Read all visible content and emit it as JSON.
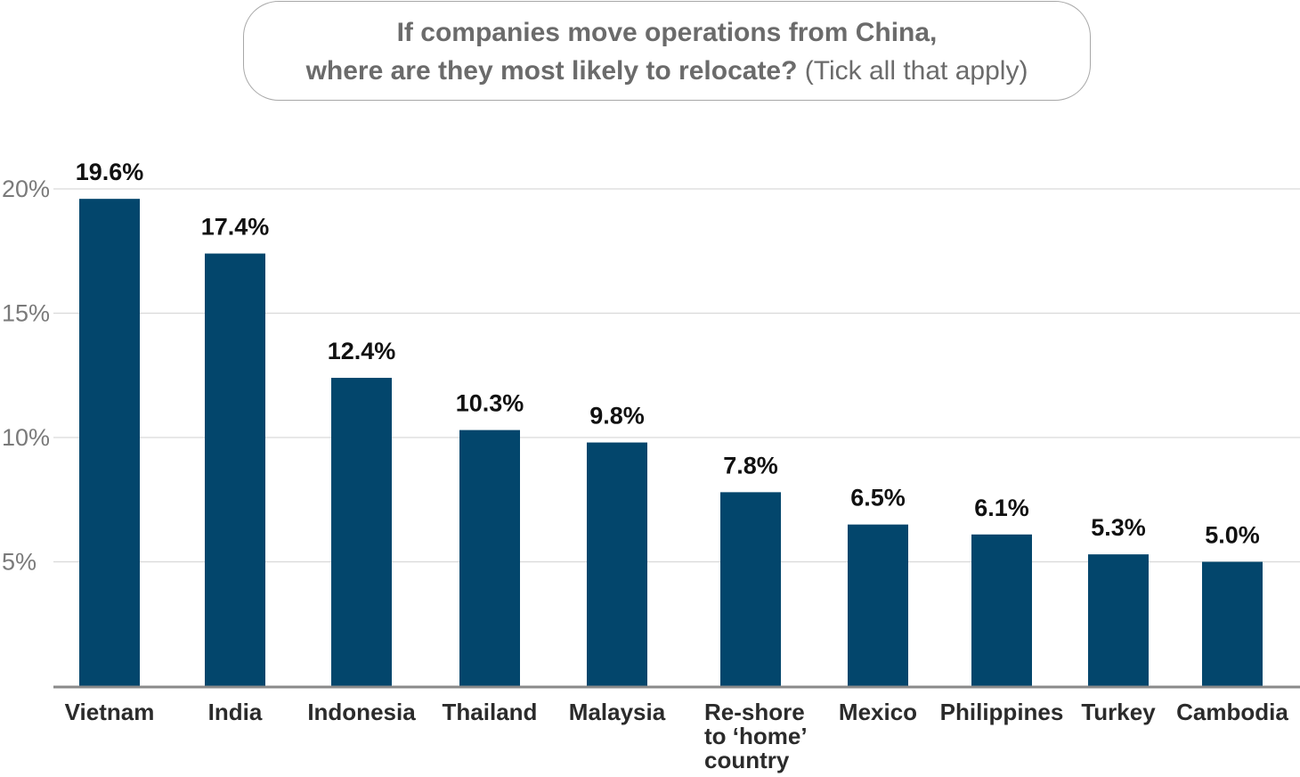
{
  "title_box": {
    "line1": "If companies move operations from China,",
    "line2_bold": "where are they most likely to relocate?",
    "line2_light": "(Tick all that apply)"
  },
  "chart_data": {
    "type": "bar",
    "title": "If companies move operations from China, where are they most likely to relocate? (Tick all that apply)",
    "categories": [
      "Vietnam",
      "India",
      "Indonesia",
      "Thailand",
      "Malaysia",
      "Re-shore to ‘home’ country",
      "Mexico",
      "Philippines",
      "Turkey",
      "Cambodia"
    ],
    "category_lines": [
      [
        "Vietnam"
      ],
      [
        "India"
      ],
      [
        "Indonesia"
      ],
      [
        "Thailand"
      ],
      [
        "Malaysia"
      ],
      [
        "Re-shore",
        "to ‘home’",
        "country"
      ],
      [
        "Mexico"
      ],
      [
        "Philippines"
      ],
      [
        "Turkey"
      ],
      [
        "Cambodia"
      ]
    ],
    "values": [
      19.6,
      17.4,
      12.4,
      10.3,
      9.8,
      7.8,
      6.5,
      6.1,
      5.3,
      5.0
    ],
    "value_labels": [
      "19.6%",
      "17.4%",
      "12.4%",
      "10.3%",
      "9.8%",
      "7.8%",
      "6.5%",
      "6.1%",
      "5.3%",
      "5.0%"
    ],
    "yticks": [
      5,
      10,
      15,
      20
    ],
    "ytick_labels": [
      "5%",
      "10%",
      "15%",
      "20%"
    ],
    "ylim": [
      0,
      20
    ],
    "grid": true,
    "bar_color": "#03466c",
    "xlabel": "",
    "ylabel": ""
  }
}
